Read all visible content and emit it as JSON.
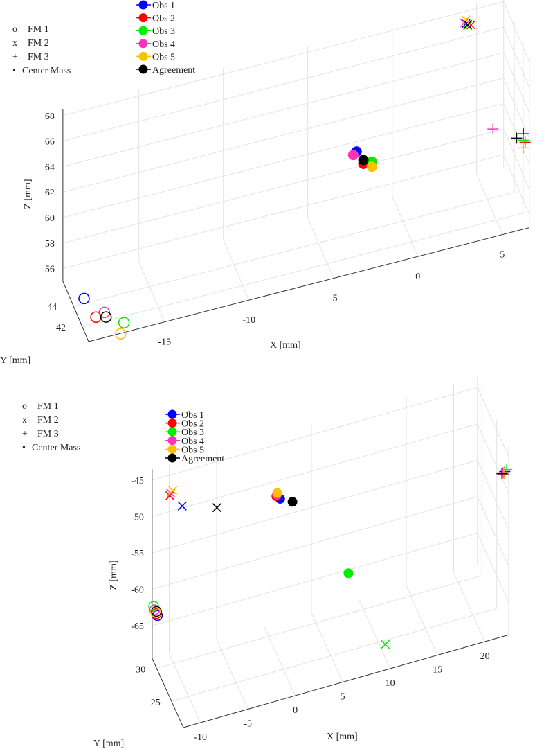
{
  "chart_data": [
    {
      "type": "scatter3d",
      "xlabel": "X [mm]",
      "ylabel": "Y [mm]",
      "zlabel": "Z [mm]",
      "xlim": [
        -19.5,
        6.6
      ],
      "ylim": [
        40.6,
        46.4
      ],
      "zlim": [
        55,
        68.5
      ],
      "xticks": [
        -15,
        -10,
        -5,
        0,
        5
      ],
      "yticks": [
        42,
        44
      ],
      "zticks": [
        56,
        58,
        60,
        62,
        64,
        66,
        68
      ],
      "grid": true,
      "marker_legend": [
        {
          "symbol": "o",
          "label": "FM 1"
        },
        {
          "symbol": "x",
          "label": "FM 2"
        },
        {
          "symbol": "+",
          "label": "FM 3"
        },
        {
          "symbol": "•",
          "label": "Center Mass"
        }
      ],
      "series": [
        {
          "name": "Obs 1",
          "color": "#0000ff",
          "fm1": [
            -19.4,
            42,
            57.2
          ],
          "fm2": [
            4.0,
            45,
            68.3
          ],
          "fm3": [
            7.4,
            45,
            58.5
          ],
          "center": [
            -3.0,
            43,
            62.3
          ]
        },
        {
          "name": "Obs 2",
          "color": "#ff0000",
          "fm1": [
            -18.7,
            42,
            55.5
          ],
          "fm2": [
            4.3,
            45,
            68.1
          ],
          "fm3": [
            7.5,
            45,
            57.8
          ],
          "center": [
            -2.6,
            43,
            61.2
          ]
        },
        {
          "name": "Obs 3",
          "color": "#00ee00",
          "fm1": [
            -17.3,
            41,
            55.4
          ],
          "fm2": [
            4.1,
            45,
            68.1
          ],
          "fm3": [
            7.4,
            45,
            58.0
          ],
          "center": [
            -2.1,
            43,
            61.2
          ]
        },
        {
          "name": "Obs 4",
          "color": "#ff33bb",
          "fm1": [
            -18.2,
            42,
            55.7
          ],
          "fm2": [
            3.9,
            45,
            68.4
          ],
          "fm3": [
            5.6,
            45,
            59.5
          ],
          "center": [
            -3.2,
            43,
            62.1
          ]
        },
        {
          "name": "Obs 5",
          "color": "#ffc000",
          "fm1": [
            -17.5,
            41,
            54.6
          ],
          "fm2": [
            4.0,
            45,
            68.6
          ],
          "fm3": [
            7.4,
            45,
            57.4
          ],
          "center": [
            -2.1,
            43,
            60.8
          ]
        },
        {
          "name": "Agreement",
          "color": "#000000",
          "fm1": [
            -18.1,
            42,
            55.3
          ],
          "fm2": [
            4.1,
            45,
            68.2
          ],
          "fm3": [
            7.0,
            45,
            58.3
          ],
          "center": [
            -2.6,
            43,
            61.5
          ]
        }
      ]
    },
    {
      "type": "scatter3d",
      "xlabel": "X [mm]",
      "ylabel": "Y [mm]",
      "zlabel": "Z [mm]",
      "xlim": [
        -11.8,
        22.5
      ],
      "ylim": [
        21,
        31.5
      ],
      "zlim": [
        -69.5,
        -43.5
      ],
      "xticks": [
        -10,
        -5,
        0,
        5,
        10,
        15,
        20
      ],
      "yticks": [
        25,
        30
      ],
      "zticks": [
        -65,
        -60,
        -55,
        -50,
        -45
      ],
      "grid": true,
      "marker_legend": [
        {
          "symbol": "o",
          "label": "FM 1"
        },
        {
          "symbol": "x",
          "label": "FM 2"
        },
        {
          "symbol": "+",
          "label": "FM 3"
        },
        {
          "symbol": "•",
          "label": "Center Mass"
        }
      ],
      "series": [
        {
          "name": "Obs 1",
          "color": "#0000ff",
          "fm1": [
            -11.4,
            31,
            -63.3
          ],
          "fm2": [
            -9.1,
            30,
            -48.2
          ],
          "fm3": [
            22.1,
            21,
            -46.9
          ],
          "center": [
            0.6,
            28,
            -49.0
          ]
        },
        {
          "name": "Obs 2",
          "color": "#ff0000",
          "fm1": [
            -11.5,
            31,
            -63.0
          ],
          "fm2": [
            -10.4,
            30,
            -46.3
          ],
          "fm3": [
            22.0,
            21,
            -47.2
          ],
          "center": [
            0.2,
            28,
            -48.5
          ]
        },
        {
          "name": "Obs 3",
          "color": "#00ee00",
          "fm1": [
            -11.8,
            31,
            -61.9
          ],
          "fm2": [
            9.8,
            22,
            -67.0
          ],
          "fm3": [
            22.3,
            21,
            -46.7
          ],
          "center": [
            7.8,
            28,
            -61.9
          ]
        },
        {
          "name": "Obs 4",
          "color": "#ff33bb",
          "fm1": [
            -11.7,
            31,
            -62.4
          ],
          "fm2": [
            -10.3,
            30,
            -46.0
          ],
          "fm3": [
            21.9,
            21,
            -47.0
          ],
          "center": [
            0.25,
            28,
            -48.3
          ]
        },
        {
          "name": "Obs 5",
          "color": "#ffc000",
          "fm1": [
            -11.6,
            31,
            -62.8
          ],
          "fm2": [
            -10.1,
            30,
            -45.7
          ],
          "fm3": [
            22.0,
            21,
            -47.1
          ],
          "center": [
            0.3,
            28,
            -48.1
          ]
        },
        {
          "name": "Agreement",
          "color": "#000000",
          "fm1": [
            -11.5,
            31,
            -62.7
          ],
          "fm2": [
            -6.7,
            26,
            -45.7
          ],
          "fm3": [
            21.8,
            21,
            -47.1
          ],
          "center": [
            1.9,
            28,
            -49.9
          ]
        }
      ]
    }
  ]
}
